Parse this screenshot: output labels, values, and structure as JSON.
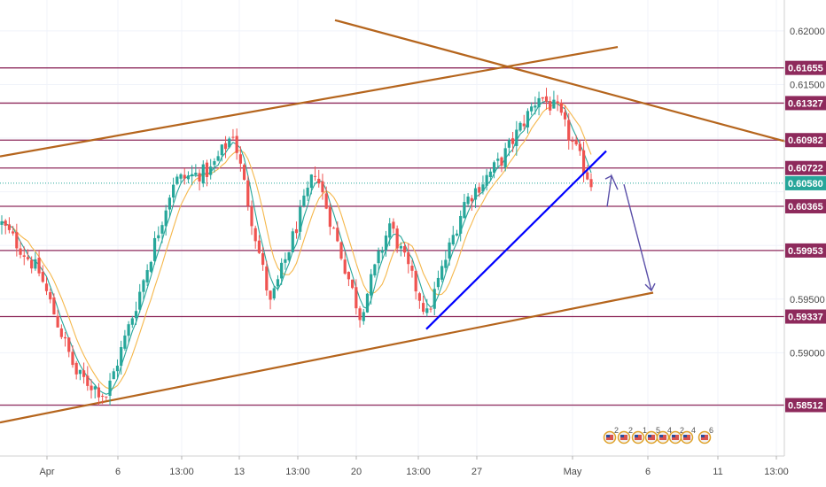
{
  "chart_data": {
    "type": "candlestick",
    "ylim": [
      0.583,
      0.621
    ],
    "grid": true,
    "colors": {
      "up": "#26a69a",
      "down": "#ef5350",
      "level_line": "#8e2a5c",
      "channel": "#b5651d",
      "trendline": "#0000ff",
      "arrow": "#5a4fa8",
      "ma_fast": "#26a69a",
      "ma_slow": "#f5b74b",
      "current_price": "#26a69a"
    },
    "price_axis_labels": [
      {
        "text": "0.62000",
        "value": 0.62,
        "highlighted": false
      },
      {
        "text": "0.61655",
        "value": 0.61655,
        "highlighted": true
      },
      {
        "text": "0.61500",
        "value": 0.615,
        "highlighted": false
      },
      {
        "text": "0.61327",
        "value": 0.61327,
        "highlighted": true
      },
      {
        "text": "0.60982",
        "value": 0.60982,
        "highlighted": true
      },
      {
        "text": "0.60722",
        "value": 0.60722,
        "highlighted": true
      },
      {
        "text": "0.60580",
        "value": 0.6058,
        "highlighted": true,
        "current": true
      },
      {
        "text": "0.60365",
        "value": 0.60365,
        "highlighted": true
      },
      {
        "text": "0.59953",
        "value": 0.59953,
        "highlighted": true
      },
      {
        "text": "0.59500",
        "value": 0.595,
        "highlighted": false
      },
      {
        "text": "0.59337",
        "value": 0.59337,
        "highlighted": true
      },
      {
        "text": "0.59000",
        "value": 0.59,
        "highlighted": false
      },
      {
        "text": "0.58512",
        "value": 0.58512,
        "highlighted": true
      }
    ],
    "horizontal_levels": [
      0.61655,
      0.61327,
      0.60982,
      0.60722,
      0.60365,
      0.59953,
      0.59337,
      0.58512
    ],
    "current_price": 0.6058,
    "x_tick_labels": [
      "Apr",
      "6",
      "13:00",
      "13",
      "13:00",
      "20",
      "13:00",
      "27",
      "May",
      "6",
      "11",
      "13:00"
    ],
    "event_flags": [
      "2",
      "2",
      "1",
      "5",
      "4",
      "2",
      "4",
      "6"
    ],
    "anchors": [
      {
        "bar": 0,
        "price": 0.602
      },
      {
        "bar": 10,
        "price": 0.5975
      },
      {
        "bar": 20,
        "price": 0.588
      },
      {
        "bar": 28,
        "price": 0.586
      },
      {
        "bar": 36,
        "price": 0.5945
      },
      {
        "bar": 46,
        "price": 0.606
      },
      {
        "bar": 56,
        "price": 0.607
      },
      {
        "bar": 62,
        "price": 0.6105
      },
      {
        "bar": 72,
        "price": 0.5945
      },
      {
        "bar": 84,
        "price": 0.607
      },
      {
        "bar": 96,
        "price": 0.5935
      },
      {
        "bar": 104,
        "price": 0.602
      },
      {
        "bar": 114,
        "price": 0.5935
      },
      {
        "bar": 124,
        "price": 0.604
      },
      {
        "bar": 134,
        "price": 0.608
      },
      {
        "bar": 144,
        "price": 0.614
      },
      {
        "bar": 149,
        "price": 0.6125
      },
      {
        "bar": 158,
        "price": 0.6058
      }
    ]
  }
}
